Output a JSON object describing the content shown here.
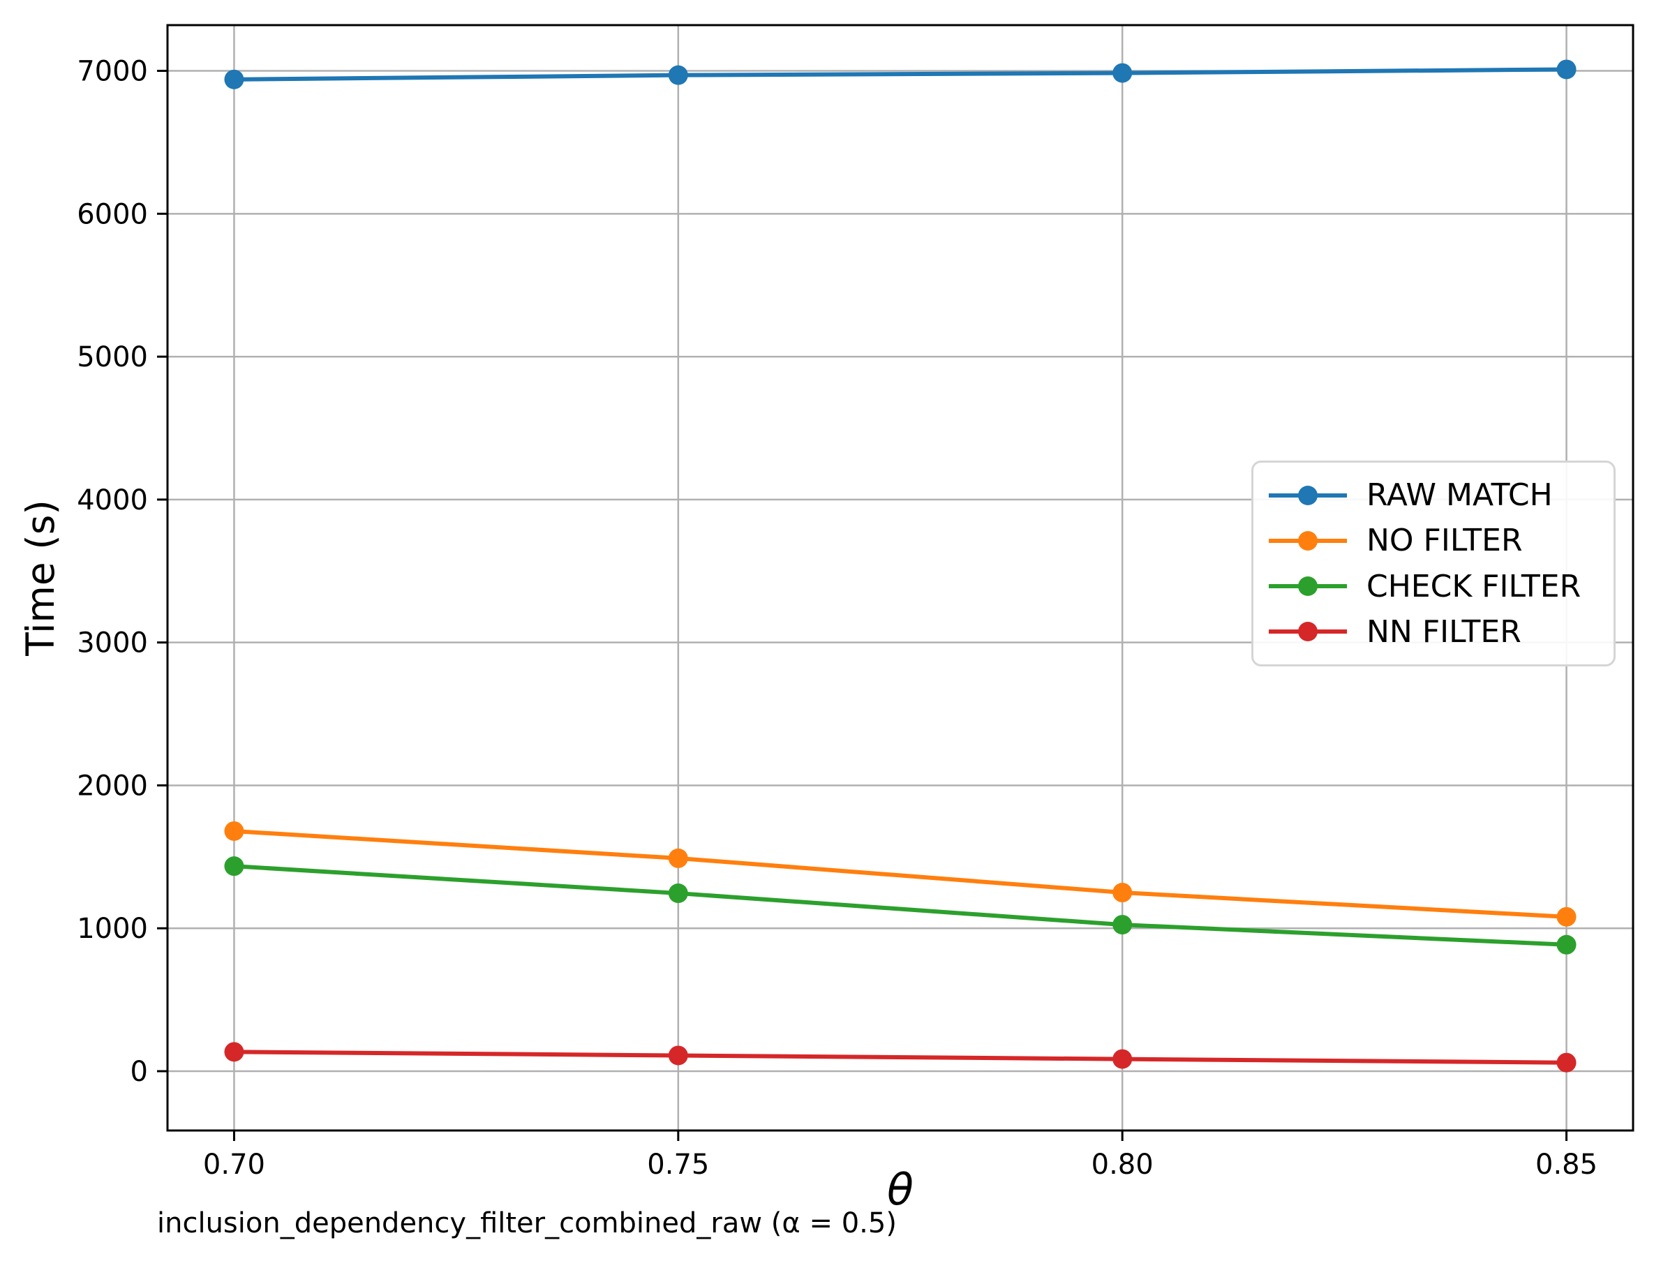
{
  "figure": {
    "ylabel": "Time (s)",
    "xlabel": "θ",
    "caption": "inclusion_dependency_filter_combined_raw (α = 0.5)"
  },
  "style_colors": {
    "grid": "#b0b0b0",
    "spine": "#000000",
    "legend_border": "#d5d5d5"
  },
  "chart_data": {
    "type": "line",
    "title": "",
    "xlabel": "θ",
    "ylabel": "Time (s)",
    "caption": "inclusion_dependency_filter_combined_raw (α = 0.5)",
    "x": [
      0.7,
      0.75,
      0.8,
      0.85
    ],
    "x_tick_labels": [
      "0.70",
      "0.75",
      "0.80",
      "0.85"
    ],
    "y_ticks": [
      0,
      1000,
      2000,
      3000,
      4000,
      5000,
      6000,
      7000
    ],
    "xlim": [
      0.6925,
      0.8575
    ],
    "ylim": [
      -415,
      7320
    ],
    "grid": true,
    "legend_position": "center right",
    "series": [
      {
        "name": "RAW MATCH",
        "color": "#1f77b4",
        "values": [
          6940,
          6970,
          6985,
          7010
        ]
      },
      {
        "name": "NO FILTER",
        "color": "#ff7f0e",
        "values": [
          1680,
          1490,
          1250,
          1080
        ]
      },
      {
        "name": "CHECK FILTER",
        "color": "#2ca02c",
        "values": [
          1435,
          1245,
          1025,
          885
        ]
      },
      {
        "name": "NN FILTER",
        "color": "#d62728",
        "values": [
          135,
          110,
          85,
          60
        ]
      }
    ]
  }
}
